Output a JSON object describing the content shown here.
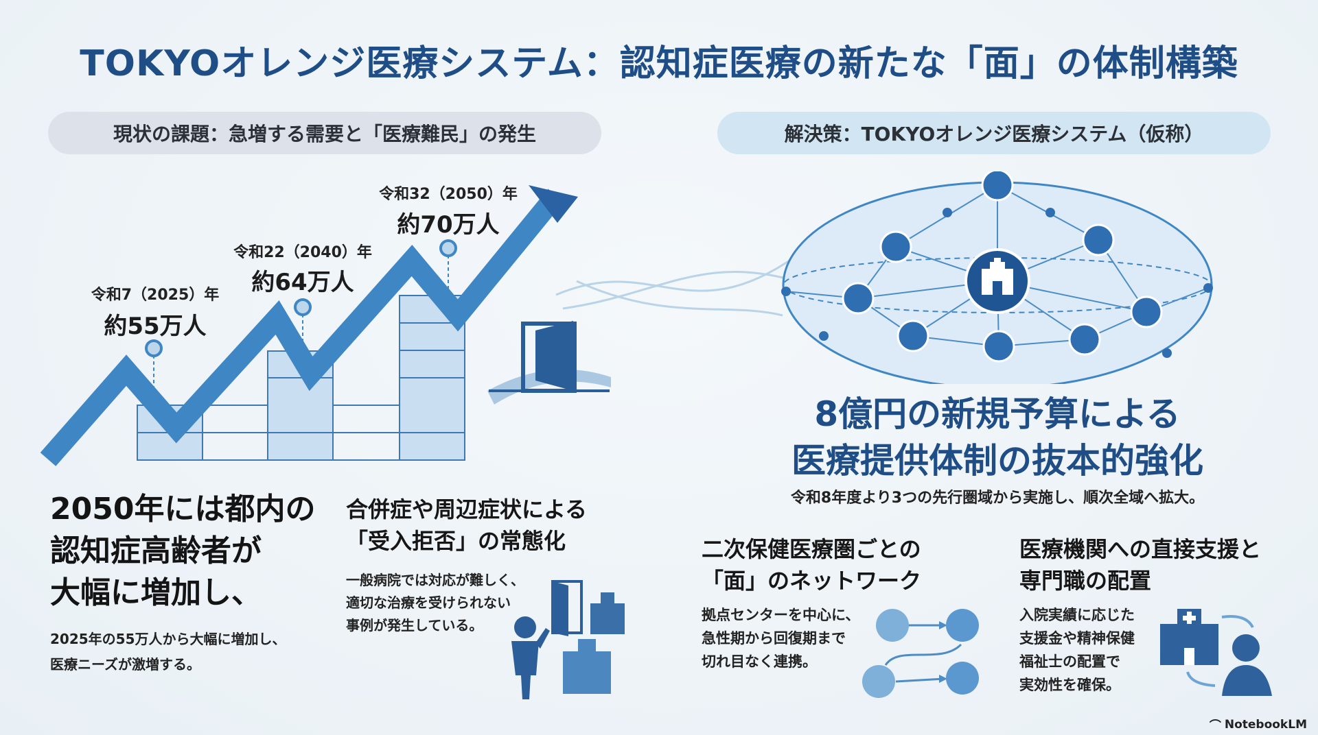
{
  "title": "TOKYOオレンジ医療システム：認知症医療の新たな「面」の体制構築",
  "left": {
    "pill": "現状の課題：急増する需要と「医療難民」の発生",
    "milestones": [
      {
        "year": "令和7（2025）年",
        "value": "約55万人"
      },
      {
        "year": "令和22（2040）年",
        "value": "約64万人"
      },
      {
        "year": "令和32（2050）年",
        "value": "約70万人"
      }
    ],
    "headline_lines": [
      "2050年には都内の",
      "認知症高齢者が",
      "大幅に増加し、"
    ],
    "body_lines": [
      "2025年の55万人から大幅に増加し、",
      "医療ニーズが激増する。"
    ],
    "issue": {
      "title_lines": [
        "合併症や周辺症状による",
        "「受入拒否」の常態化"
      ],
      "body_lines": [
        "一般病院では対応が難しく、",
        "適切な治療を受けられない",
        "事例が発生している。"
      ]
    }
  },
  "right": {
    "pill": "解決策：TOKYOオレンジ医療システム（仮称）",
    "headline_lines": [
      "8億円の新規予算による",
      "医療提供体制の抜本的強化"
    ],
    "sub": "令和8年度より3つの先行圏域から実施し、順次全域へ拡大。",
    "network": {
      "title_lines": [
        "二次保健医療圏ごとの",
        "「面」のネットワーク"
      ],
      "body_lines": [
        "拠点センターを中心に、",
        "急性期から回復期まで",
        "切れ目なく連携。"
      ]
    },
    "support": {
      "title_lines": [
        "医療機関への直接支援と",
        "専門職の配置"
      ],
      "body_lines": [
        "入院実績に応じた",
        "支援金や精神保健",
        "福祉士の配置で",
        "実効性を確保。"
      ]
    }
  },
  "brand": "NotebookLM",
  "colors": {
    "primary": "#1f4e86",
    "accent": "#3f86c4",
    "light": "#bcd6ec"
  }
}
